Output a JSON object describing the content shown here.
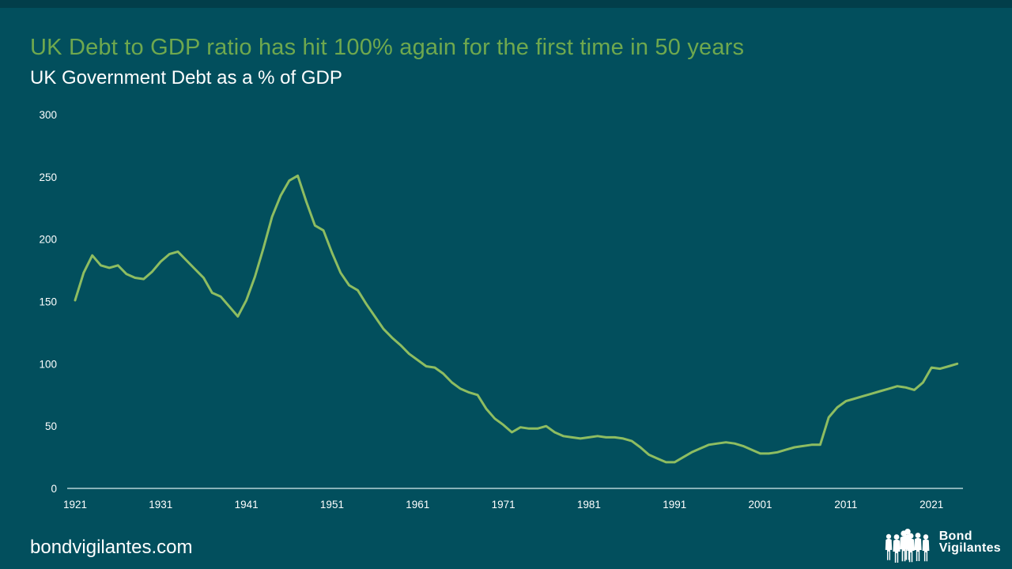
{
  "slide": {
    "title": "UK Debt to GDP ratio has hit 100% again for the first time in 50 years",
    "subtitle": "UK Government Debt as a % of GDP",
    "footer_url": "bondvigilantes.com",
    "logo": {
      "line1": "Bond",
      "line2": "Vigilantes"
    }
  },
  "colors": {
    "background": "#024F5D",
    "top_bar": "#023E4A",
    "title_green": "#6FA84E",
    "line_green": "#8EBD61",
    "axis_line": "#D9EDEE",
    "text_white": "#FFFFFF"
  },
  "chart_data": {
    "type": "line",
    "title": "UK Government Debt as a % of GDP",
    "xlabel": "",
    "ylabel": "",
    "xlim": [
      1921,
      2024
    ],
    "ylim": [
      0,
      300
    ],
    "grid": false,
    "legend": false,
    "x_ticks": [
      1921,
      1931,
      1941,
      1951,
      1961,
      1971,
      1981,
      1991,
      2001,
      2011,
      2021
    ],
    "y_ticks": [
      0,
      50,
      100,
      150,
      200,
      250,
      300
    ],
    "x": [
      1921,
      1922,
      1923,
      1924,
      1925,
      1926,
      1927,
      1928,
      1929,
      1930,
      1931,
      1932,
      1933,
      1934,
      1935,
      1936,
      1937,
      1938,
      1939,
      1940,
      1941,
      1942,
      1943,
      1944,
      1945,
      1946,
      1947,
      1948,
      1949,
      1950,
      1951,
      1952,
      1953,
      1954,
      1955,
      1956,
      1957,
      1958,
      1959,
      1960,
      1961,
      1962,
      1963,
      1964,
      1965,
      1966,
      1967,
      1968,
      1969,
      1970,
      1971,
      1972,
      1973,
      1974,
      1975,
      1976,
      1977,
      1978,
      1979,
      1980,
      1981,
      1982,
      1983,
      1984,
      1985,
      1986,
      1987,
      1988,
      1989,
      1990,
      1991,
      1992,
      1993,
      1994,
      1995,
      1996,
      1997,
      1998,
      1999,
      2000,
      2001,
      2002,
      2003,
      2004,
      2005,
      2006,
      2007,
      2008,
      2009,
      2010,
      2011,
      2012,
      2013,
      2014,
      2015,
      2016,
      2017,
      2018,
      2019,
      2020,
      2021,
      2022,
      2023,
      2024
    ],
    "series": [
      {
        "name": "UK Government Debt as a % of GDP",
        "values": [
          151,
          173,
          187,
          179,
          177,
          179,
          172,
          169,
          168,
          174,
          182,
          188,
          190,
          183,
          176,
          169,
          157,
          154,
          146,
          138,
          151,
          170,
          193,
          218,
          235,
          247,
          251,
          230,
          211,
          207,
          189,
          173,
          163,
          159,
          148,
          138,
          128,
          121,
          115,
          108,
          103,
          98,
          97,
          92,
          85,
          80,
          77,
          75,
          64,
          56,
          51,
          45,
          49,
          48,
          48,
          50,
          45,
          42,
          41,
          40,
          41,
          42,
          41,
          41,
          40,
          38,
          33,
          27,
          24,
          21,
          21,
          25,
          29,
          32,
          35,
          36,
          37,
          36,
          34,
          31,
          28,
          28,
          29,
          31,
          33,
          34,
          35,
          35,
          57,
          65,
          70,
          72,
          74,
          76,
          78,
          80,
          82,
          81,
          79,
          85,
          97,
          96,
          98,
          100
        ]
      }
    ]
  }
}
